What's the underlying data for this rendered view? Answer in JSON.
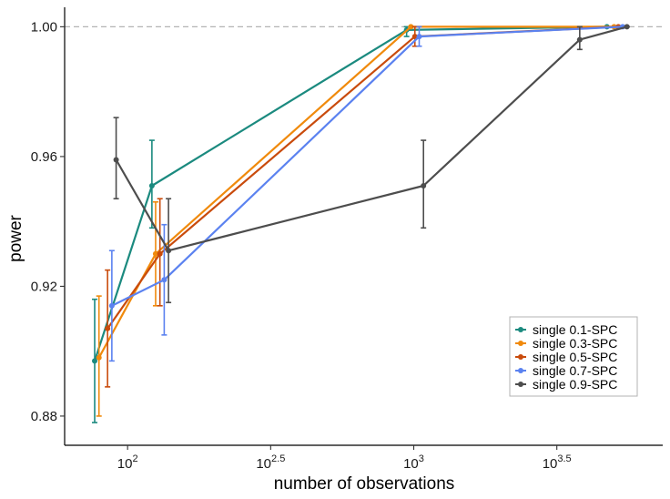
{
  "chart_data": {
    "type": "line",
    "title": "",
    "xlabel": "number of observations",
    "ylabel": "power",
    "xscale": "log10",
    "xlim_log10": [
      1.78,
      3.87
    ],
    "ylim": [
      0.871,
      1.006
    ],
    "reference_line": {
      "y": 1.0,
      "style": "dashed"
    },
    "legend_position": "bottom-right",
    "x_ticks": [
      {
        "log10": 2.0,
        "base": "10",
        "exp": "2"
      },
      {
        "log10": 2.5,
        "base": "10",
        "exp": "2.5"
      },
      {
        "log10": 3.0,
        "base": "10",
        "exp": "3"
      },
      {
        "log10": 3.5,
        "base": "10",
        "exp": "3.5"
      }
    ],
    "y_ticks": [
      {
        "value": 0.88,
        "label": "0.88"
      },
      {
        "value": 0.92,
        "label": "0.92"
      },
      {
        "value": 0.96,
        "label": "0.96"
      },
      {
        "value": 1.0,
        "label": "1.00"
      }
    ],
    "series": [
      {
        "name": "single 0.1-SPC",
        "color": "#1b8a7f",
        "points": [
          {
            "x": 1.885,
            "y": 0.897,
            "lo": 0.878,
            "hi": 0.916
          },
          {
            "x": 2.085,
            "y": 0.951,
            "lo": 0.938,
            "hi": 0.965
          },
          {
            "x": 2.975,
            "y": 0.999,
            "lo": 0.997,
            "hi": 1.0
          },
          {
            "x": 3.675,
            "y": 1.0,
            "lo": 1.0,
            "hi": 1.0
          }
        ]
      },
      {
        "name": "single 0.3-SPC",
        "color": "#f08a0c",
        "points": [
          {
            "x": 1.9,
            "y": 0.898,
            "lo": 0.88,
            "hi": 0.917
          },
          {
            "x": 2.098,
            "y": 0.93,
            "lo": 0.914,
            "hi": 0.946
          },
          {
            "x": 2.99,
            "y": 1.0,
            "lo": 1.0,
            "hi": 1.0
          },
          {
            "x": 3.7,
            "y": 1.0,
            "lo": 1.0,
            "hi": 1.0
          }
        ]
      },
      {
        "name": "single 0.5-SPC",
        "color": "#c94b0c",
        "points": [
          {
            "x": 1.93,
            "y": 0.907,
            "lo": 0.889,
            "hi": 0.925
          },
          {
            "x": 2.113,
            "y": 0.93,
            "lo": 0.914,
            "hi": 0.947
          },
          {
            "x": 3.004,
            "y": 0.997,
            "lo": 0.994,
            "hi": 1.0
          },
          {
            "x": 3.715,
            "y": 1.0,
            "lo": 1.0,
            "hi": 1.0
          }
        ]
      },
      {
        "name": "single 0.7-SPC",
        "color": "#5b82f0",
        "points": [
          {
            "x": 1.945,
            "y": 0.914,
            "lo": 0.897,
            "hi": 0.931
          },
          {
            "x": 2.128,
            "y": 0.922,
            "lo": 0.905,
            "hi": 0.939
          },
          {
            "x": 3.019,
            "y": 0.997,
            "lo": 0.994,
            "hi": 1.0
          },
          {
            "x": 3.73,
            "y": 1.0,
            "lo": 1.0,
            "hi": 1.0
          }
        ]
      },
      {
        "name": "single 0.9-SPC",
        "color": "#4d4d4d",
        "points": [
          {
            "x": 1.96,
            "y": 0.959,
            "lo": 0.947,
            "hi": 0.972
          },
          {
            "x": 2.143,
            "y": 0.931,
            "lo": 0.915,
            "hi": 0.947
          },
          {
            "x": 3.034,
            "y": 0.951,
            "lo": 0.938,
            "hi": 0.965
          },
          {
            "x": 3.58,
            "y": 0.996,
            "lo": 0.993,
            "hi": 1.0
          },
          {
            "x": 3.745,
            "y": 1.0,
            "lo": 1.0,
            "hi": 1.0
          }
        ]
      }
    ]
  }
}
